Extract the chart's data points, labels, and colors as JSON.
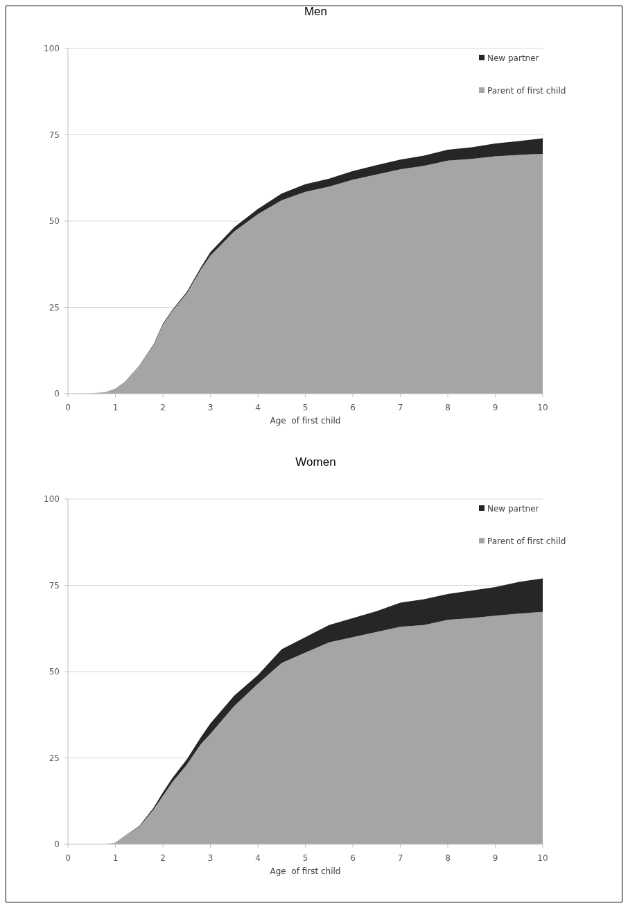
{
  "chart_data": [
    {
      "type": "area",
      "stacked": true,
      "title": "Men",
      "xlabel": "Age  of first child",
      "x": [
        0,
        0.5,
        0.8,
        1,
        1.2,
        1.5,
        1.8,
        2,
        2.2,
        2.5,
        2.8,
        3,
        3.5,
        4,
        4.5,
        5,
        5.5,
        6,
        6.5,
        7,
        7.5,
        8,
        8.5,
        9,
        9.5,
        10
      ],
      "xlim": [
        0,
        10
      ],
      "xticks": [
        0,
        1,
        2,
        3,
        4,
        5,
        6,
        7,
        8,
        9,
        10
      ],
      "ylim": [
        0,
        100
      ],
      "yticks": [
        0,
        25,
        50,
        75,
        100
      ],
      "grid": "y",
      "legend": "top right",
      "series": [
        {
          "name": "Parent of first child",
          "color": "#a5a5a5",
          "values": [
            0,
            0.1,
            0.5,
            1.5,
            3.5,
            8,
            14,
            20,
            24,
            29,
            36,
            40,
            47,
            52,
            56,
            58.5,
            60,
            62,
            63.5,
            65,
            66,
            67.5,
            68,
            68.8,
            69.2,
            69.5
          ]
        },
        {
          "name": "New partner",
          "color": "#262626",
          "values": [
            0,
            0,
            0,
            0,
            0,
            0.1,
            0.2,
            0.3,
            0.3,
            0.4,
            0.6,
            1,
            1.2,
            1.5,
            2,
            2.2,
            2.3,
            2.5,
            2.7,
            2.8,
            3,
            3.2,
            3.4,
            3.7,
            4,
            4.5
          ]
        }
      ]
    },
    {
      "type": "area",
      "stacked": true,
      "title": "Women",
      "xlabel": "Age  of first child",
      "x": [
        0,
        0.5,
        0.8,
        1,
        1.2,
        1.5,
        1.8,
        2,
        2.2,
        2.5,
        2.8,
        3,
        3.5,
        4,
        4.5,
        5,
        5.5,
        6,
        6.5,
        7,
        7.5,
        8,
        8.5,
        9,
        9.5,
        10
      ],
      "xlim": [
        0,
        10
      ],
      "xticks": [
        0,
        1,
        2,
        3,
        4,
        5,
        6,
        7,
        8,
        9,
        10
      ],
      "ylim": [
        0,
        100
      ],
      "yticks": [
        0,
        25,
        50,
        75,
        100
      ],
      "grid": "y",
      "legend": "top right",
      "series": [
        {
          "name": "Parent of first child",
          "color": "#a5a5a5",
          "values": [
            0,
            0,
            0,
            0.5,
            2.5,
            5,
            10,
            14,
            18,
            23,
            29,
            32,
            40,
            46.5,
            52.5,
            55.5,
            58.5,
            60,
            61.5,
            63,
            63.5,
            65,
            65.5,
            66.2,
            66.8,
            67.3
          ]
        },
        {
          "name": "New partner",
          "color": "#262626",
          "values": [
            0,
            0,
            0,
            0,
            0,
            0.2,
            0.5,
            1,
            1.2,
            1.5,
            2,
            3,
            3,
            2.5,
            4,
            4.5,
            5,
            5.5,
            6,
            7,
            7.5,
            7.5,
            8,
            8.3,
            9.2,
            9.7
          ]
        }
      ]
    }
  ]
}
